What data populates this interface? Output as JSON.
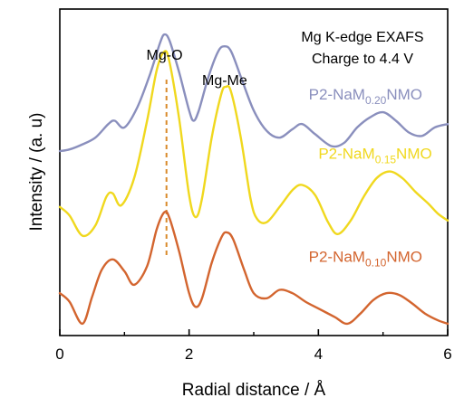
{
  "chart_data": {
    "type": "line",
    "annotation_lines": [
      "Mg K-edge EXAFS",
      "Charge to 4.4 V"
    ],
    "xlabel": "Radial distance / Å",
    "ylabel": "Intensity / (a. u)",
    "xlim": [
      0,
      6
    ],
    "x_ticks": [
      "0",
      "2",
      "4",
      "6"
    ],
    "y_ticks_labeled": false,
    "peak_labels": [
      {
        "text": "Mg-O",
        "x": 1.62
      },
      {
        "text": "Mg-Me",
        "x": 2.55
      }
    ],
    "reference_line": {
      "x": 1.65,
      "style": "dashed",
      "color": "#d98a2b"
    },
    "grid": false,
    "legend": "inline labels beside curves",
    "series": [
      {
        "name_main": "P2-NaM",
        "name_sub": "0.20",
        "name_tail": "NMO",
        "color": "#8a8fbd",
        "label_x": 3.85,
        "label_y": 1.345,
        "x": [
          0,
          0.15,
          0.35,
          0.55,
          0.75,
          0.85,
          1.0,
          1.2,
          1.4,
          1.55,
          1.62,
          1.7,
          1.85,
          2.0,
          2.07,
          2.15,
          2.3,
          2.45,
          2.55,
          2.65,
          2.8,
          3.0,
          3.2,
          3.4,
          3.6,
          3.75,
          3.95,
          4.2,
          4.4,
          4.6,
          4.8,
          5.0,
          5.2,
          5.4,
          5.6,
          5.8,
          6.0
        ],
        "y": [
          1.04,
          1.05,
          1.08,
          1.12,
          1.2,
          1.22,
          1.18,
          1.3,
          1.5,
          1.68,
          1.73,
          1.69,
          1.5,
          1.28,
          1.22,
          1.28,
          1.48,
          1.63,
          1.66,
          1.63,
          1.48,
          1.28,
          1.16,
          1.12,
          1.17,
          1.2,
          1.14,
          1.07,
          1.09,
          1.18,
          1.24,
          1.27,
          1.22,
          1.15,
          1.13,
          1.18,
          1.2
        ]
      },
      {
        "name_main": "P2-NaM",
        "name_sub": "0.15",
        "name_tail": "NMO",
        "color": "#f0d81e",
        "label_x": 4.0,
        "label_y": 0.995,
        "x": [
          0,
          0.15,
          0.35,
          0.55,
          0.72,
          0.82,
          0.95,
          1.15,
          1.35,
          1.5,
          1.62,
          1.7,
          1.85,
          2.0,
          2.1,
          2.2,
          2.35,
          2.5,
          2.57,
          2.65,
          2.8,
          2.95,
          3.05,
          3.2,
          3.4,
          3.6,
          3.75,
          3.95,
          4.15,
          4.3,
          4.5,
          4.7,
          4.9,
          5.1,
          5.3,
          5.5,
          5.7,
          5.85,
          6.0
        ],
        "y": [
          0.71,
          0.66,
          0.54,
          0.6,
          0.77,
          0.79,
          0.72,
          0.88,
          1.22,
          1.52,
          1.63,
          1.56,
          1.22,
          0.78,
          0.65,
          0.76,
          1.12,
          1.38,
          1.42,
          1.39,
          1.12,
          0.76,
          0.64,
          0.62,
          0.71,
          0.81,
          0.84,
          0.78,
          0.62,
          0.55,
          0.63,
          0.77,
          0.88,
          0.92,
          0.88,
          0.8,
          0.73,
          0.67,
          0.63
        ]
      },
      {
        "name_main": "P2-NaM",
        "name_sub": "0.10",
        "name_tail": "NMO",
        "color": "#d3652f",
        "label_x": 3.85,
        "label_y": 0.385,
        "x": [
          0,
          0.15,
          0.35,
          0.5,
          0.65,
          0.82,
          1.0,
          1.15,
          1.35,
          1.5,
          1.62,
          1.7,
          1.85,
          2.0,
          2.1,
          2.2,
          2.35,
          2.5,
          2.58,
          2.68,
          2.85,
          3.0,
          3.2,
          3.4,
          3.6,
          3.8,
          4.0,
          4.25,
          4.45,
          4.65,
          4.85,
          5.05,
          5.25,
          5.45,
          5.65,
          5.85,
          6.0
        ],
        "y": [
          0.2,
          0.15,
          0.02,
          0.18,
          0.34,
          0.4,
          0.33,
          0.25,
          0.36,
          0.58,
          0.68,
          0.64,
          0.44,
          0.2,
          0.12,
          0.17,
          0.38,
          0.53,
          0.56,
          0.52,
          0.34,
          0.2,
          0.17,
          0.22,
          0.2,
          0.15,
          0.11,
          0.06,
          0.02,
          0.08,
          0.16,
          0.2,
          0.19,
          0.14,
          0.08,
          0.04,
          0.02
        ]
      }
    ]
  }
}
